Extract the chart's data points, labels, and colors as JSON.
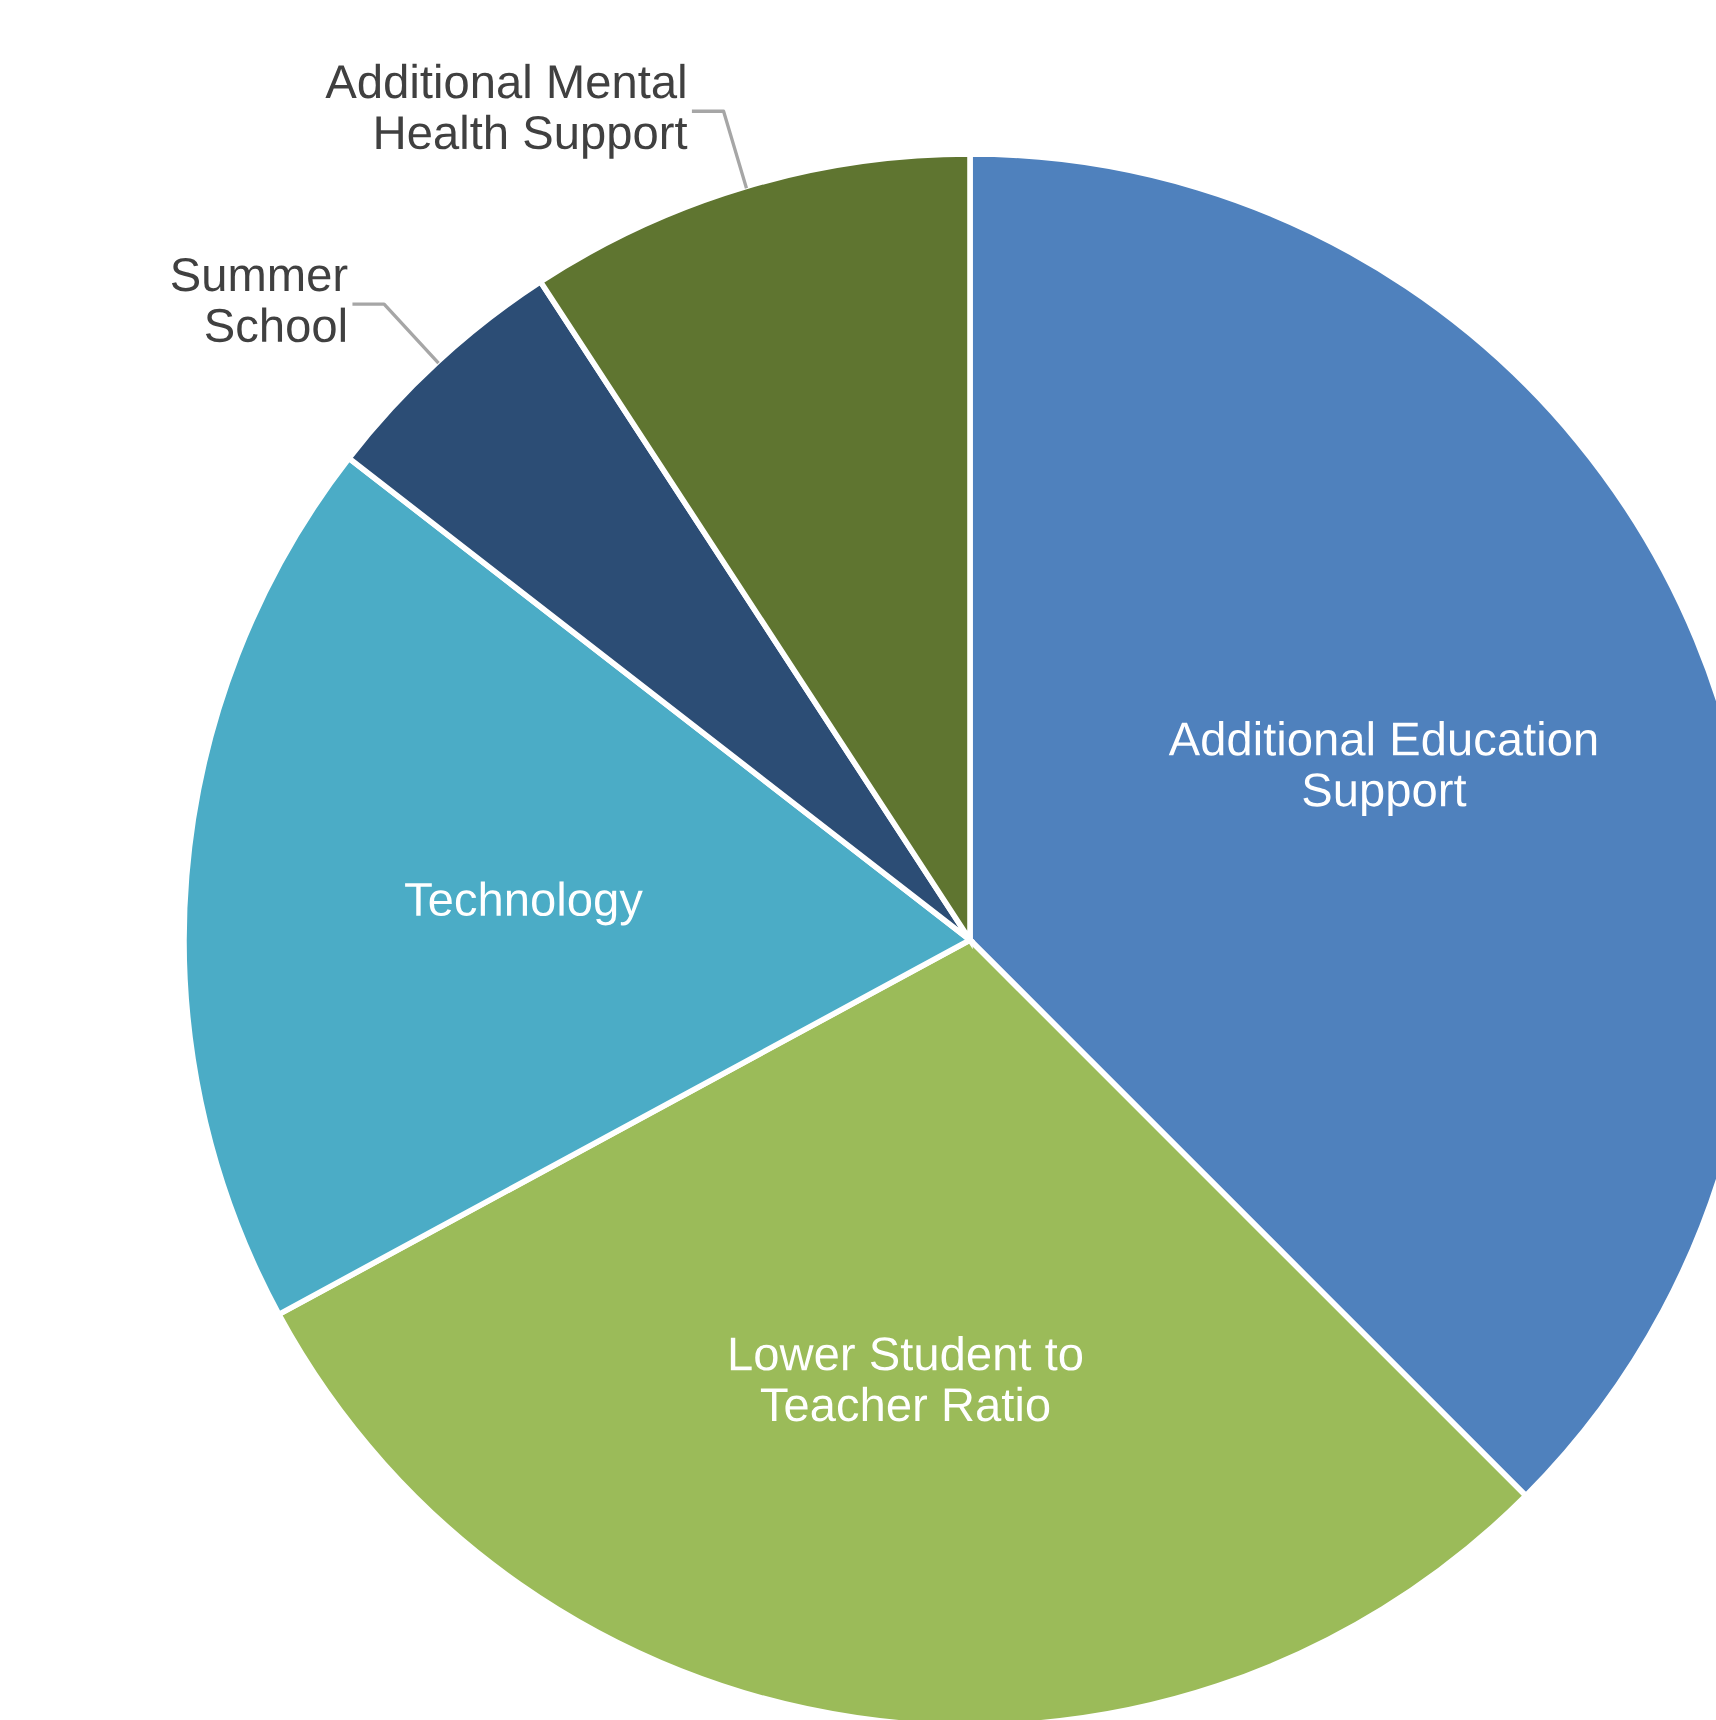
{
  "chart_data": {
    "type": "pie",
    "categories": [
      "Additional Education Support",
      "Lower Student to Teacher Ratio",
      "Technology",
      "Summer School",
      "Additional Mental Health Support"
    ],
    "values": [
      37.5,
      29.6,
      18.4,
      5.3,
      9.2
    ],
    "colors": [
      "#4f81bd",
      "#9bbb59",
      "#4bacc6",
      "#2c4d75",
      "#5f7530"
    ]
  }
}
